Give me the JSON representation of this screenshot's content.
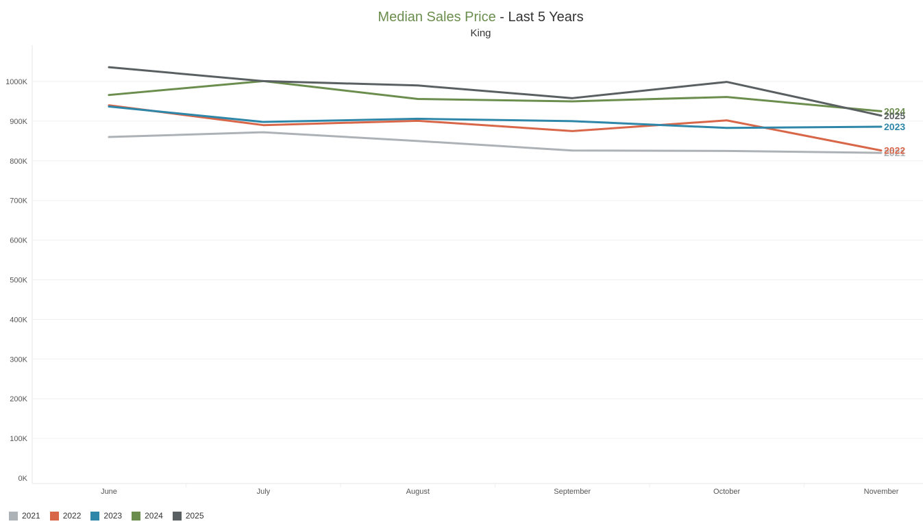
{
  "header": {
    "title_accent": "Median Sales Price",
    "title_rest": " - Last 5 Years",
    "subtitle": "King"
  },
  "chart_data": {
    "type": "line",
    "title": "Median Sales Price - Last 5 Years",
    "subtitle": "King",
    "xlabel": "",
    "ylabel": "",
    "categories": [
      "June",
      "July",
      "August",
      "September",
      "October",
      "November"
    ],
    "ylim": [
      0,
      1100000
    ],
    "y_ticks": [
      0,
      100000,
      200000,
      300000,
      400000,
      500000,
      600000,
      700000,
      800000,
      900000,
      1000000
    ],
    "y_tick_labels": [
      "0K",
      "100K",
      "200K",
      "300K",
      "400K",
      "500K",
      "600K",
      "700K",
      "800K",
      "900K",
      "1000K"
    ],
    "grid": true,
    "legend_position": "bottom-left",
    "series": [
      {
        "name": "2021",
        "color": "#adb2b7",
        "values": [
          860000,
          872000,
          850000,
          826000,
          825000,
          820000
        ]
      },
      {
        "name": "2022",
        "color": "#d8674a",
        "values": [
          940000,
          890000,
          901000,
          875000,
          902000,
          826000
        ]
      },
      {
        "name": "2023",
        "color": "#2e86a8",
        "values": [
          937000,
          898000,
          906000,
          900000,
          883000,
          886000
        ]
      },
      {
        "name": "2024",
        "color": "#6b8e4e",
        "values": [
          966000,
          1001000,
          956000,
          950000,
          961000,
          925000
        ]
      },
      {
        "name": "2025",
        "color": "#5a6061",
        "values": [
          1036000,
          1001000,
          990000,
          958000,
          999000,
          914000
        ]
      }
    ]
  }
}
